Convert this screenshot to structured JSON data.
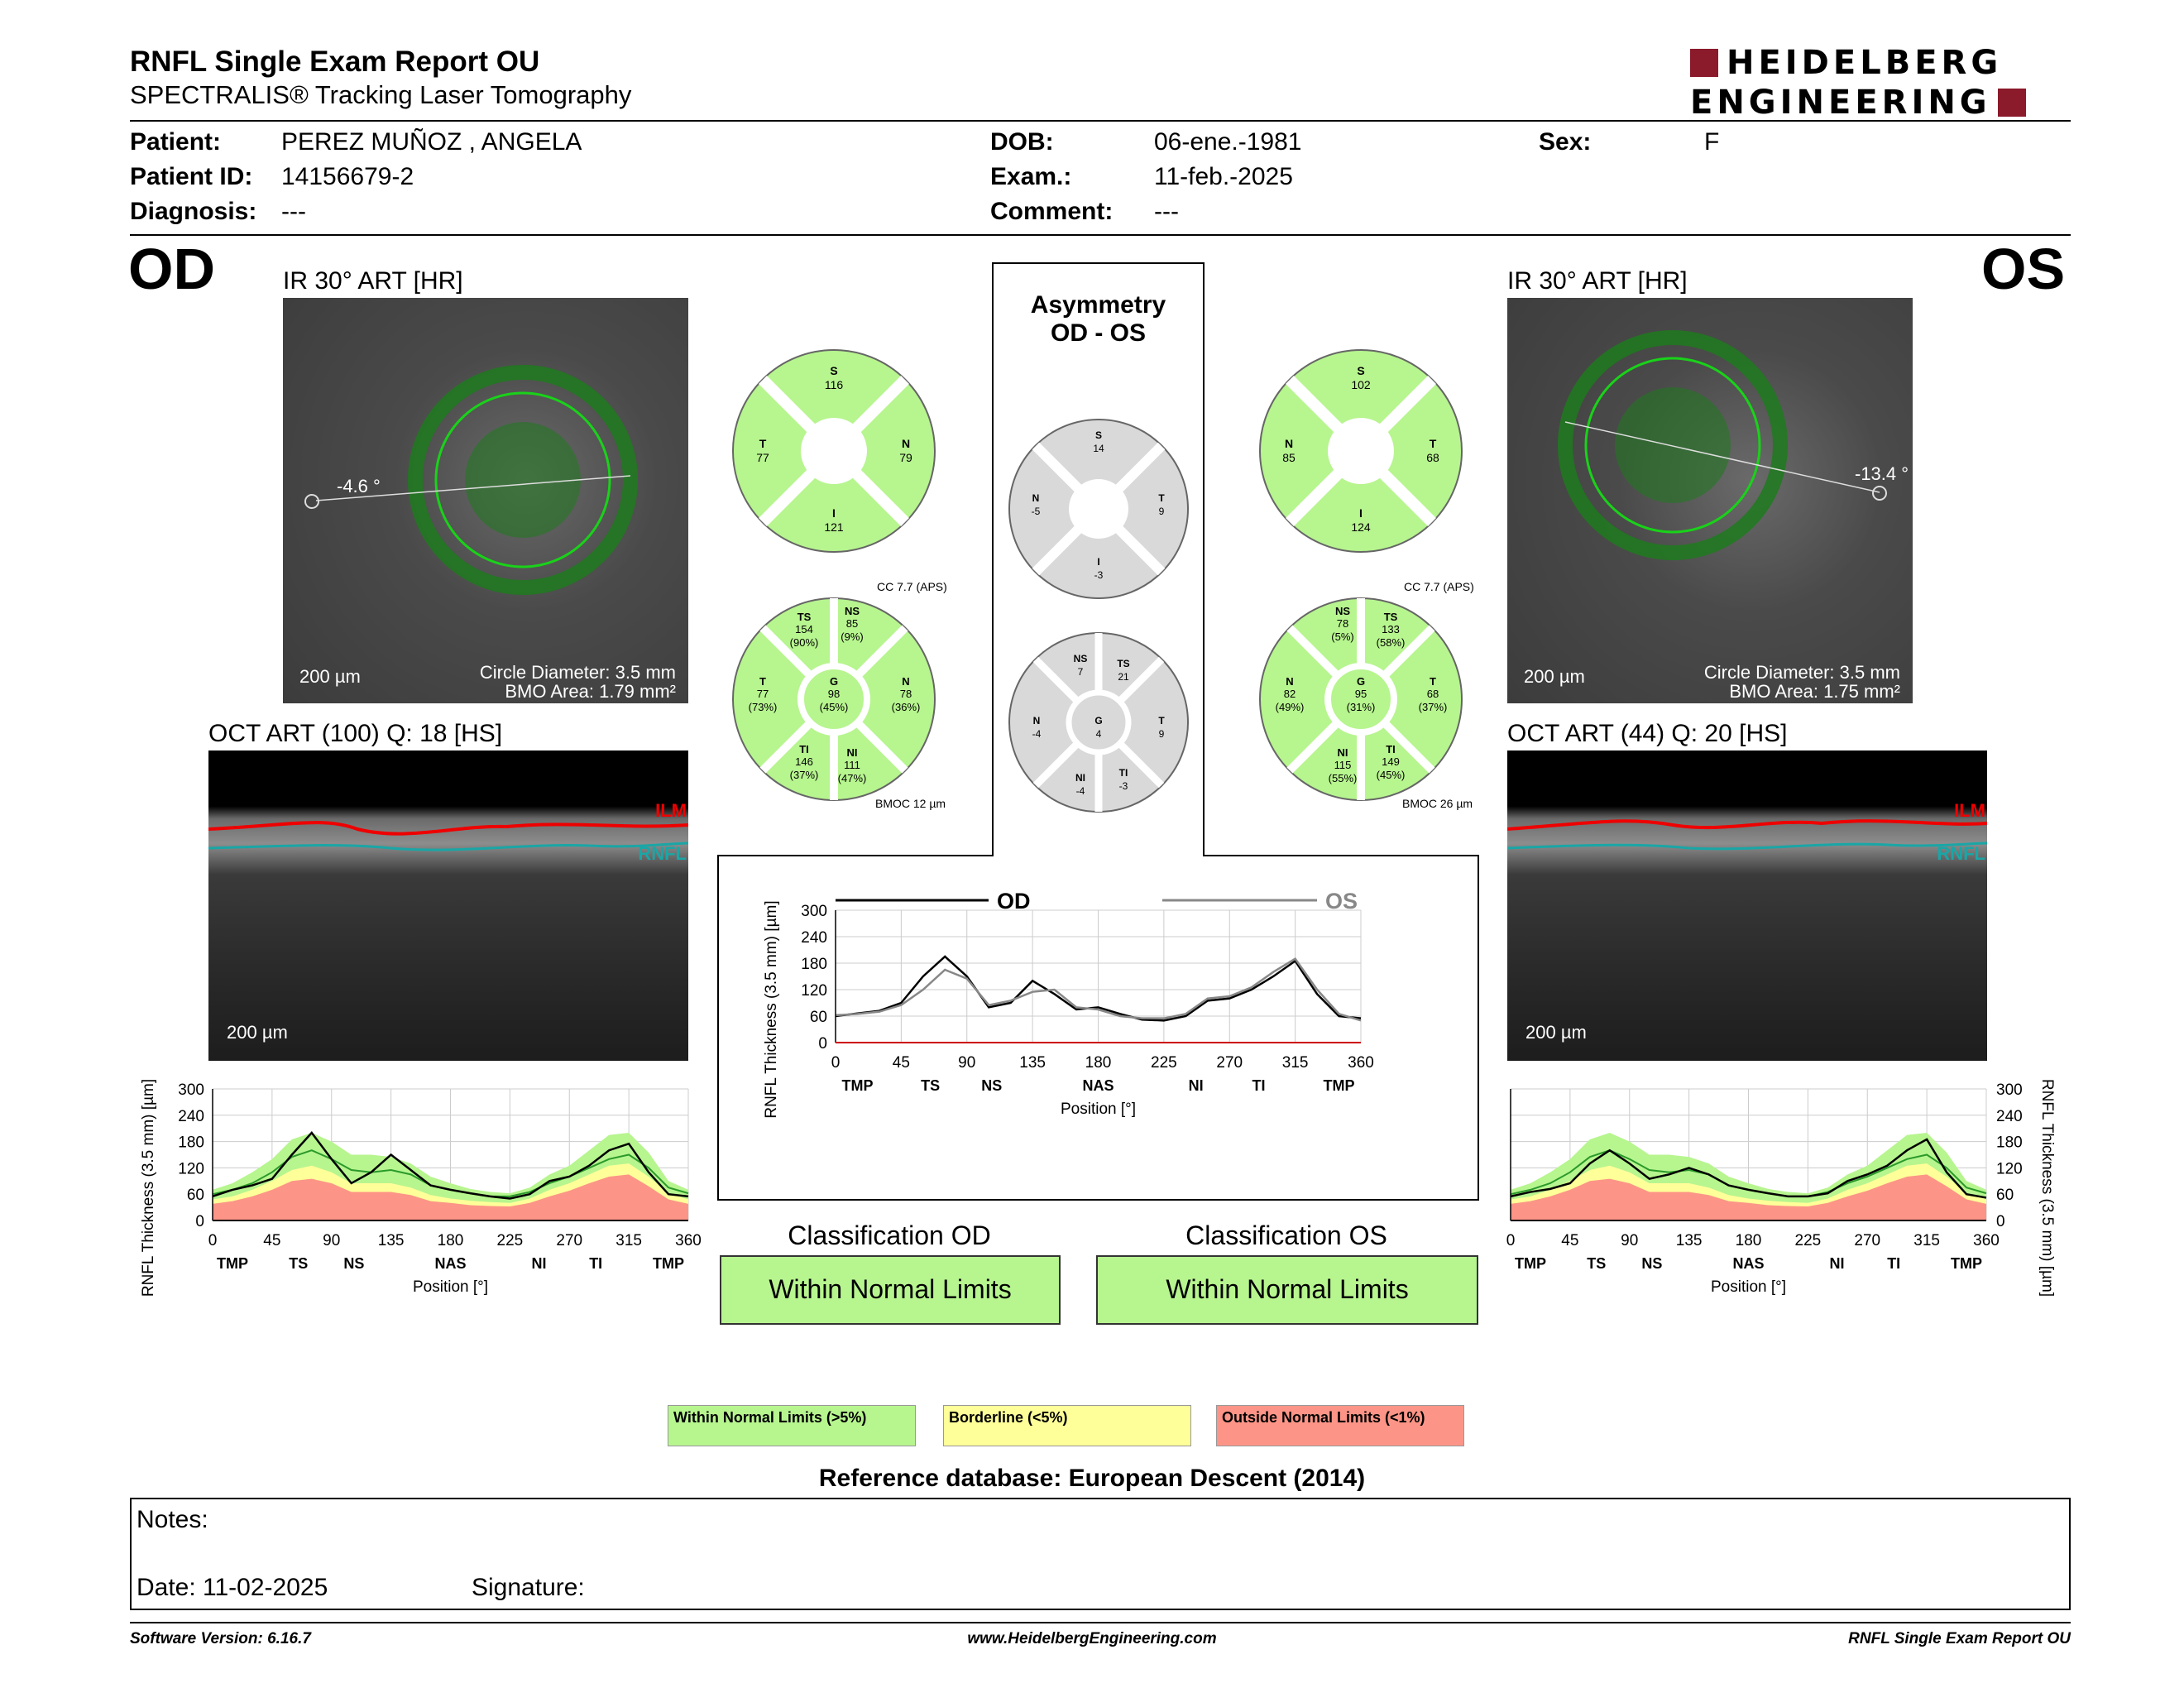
{
  "header": {
    "title": "RNFL Single Exam Report OU",
    "subtitle": "SPECTRALIS® Tracking Laser Tomography",
    "logo_line1": "HEIDELBERG",
    "logo_line2": "ENGINEERING"
  },
  "patient": {
    "patient_label": "Patient:",
    "patient_value": "PEREZ MUÑOZ , ANGELA",
    "id_label": "Patient ID:",
    "id_value": "14156679-2",
    "diag_label": "Diagnosis:",
    "diag_value": "---",
    "dob_label": "DOB:",
    "dob_value": "06-ene.-1981",
    "exam_label": "Exam.:",
    "exam_value": "11-feb.-2025",
    "comment_label": "Comment:",
    "comment_value": "---",
    "sex_label": "Sex:",
    "sex_value": "F"
  },
  "od": {
    "eye": "OD",
    "ir_caption": "IR 30° ART [HR]",
    "angle": "-4.6 °",
    "scale": "200 µm",
    "circle_diameter": "Circle Diameter: 3.5 mm",
    "bmo_area": "BMO Area: 1.79 mm²",
    "oct_caption": "OCT ART (100) Q: 18 [HS]",
    "oct_scale": "200 µm",
    "ilm": "ILM",
    "rnfl": "RNFL",
    "sectors4": {
      "S": "116",
      "T": "77",
      "N": "79",
      "I": "121"
    },
    "cc": "CC 7.7 (APS)",
    "bmoc": "BMOC 12 µm",
    "sectors6": {
      "TS": [
        "154",
        "(90%)"
      ],
      "NS": [
        "85",
        "(9%)"
      ],
      "T": [
        "77",
        "(73%)"
      ],
      "G": [
        "98",
        "(45%)"
      ],
      "N": [
        "78",
        "(36%)"
      ],
      "TI": [
        "146",
        "(37%)"
      ],
      "NI": [
        "111",
        "(47%)"
      ]
    },
    "classification_title": "Classification OD",
    "classification": "Within Normal Limits"
  },
  "os": {
    "eye": "OS",
    "ir_caption": "IR 30° ART [HR]",
    "angle": "-13.4 °",
    "scale": "200 µm",
    "circle_diameter": "Circle Diameter: 3.5 mm",
    "bmo_area": "BMO Area: 1.75 mm²",
    "oct_caption": "OCT ART (44) Q: 20 [HS]",
    "oct_scale": "200 µm",
    "ilm": "ILM",
    "rnfl": "RNFL",
    "sectors4": {
      "S": "102",
      "N": "85",
      "T": "68",
      "I": "124"
    },
    "cc": "CC 7.7 (APS)",
    "bmoc": "BMOC 26 µm",
    "sectors6": {
      "NS": [
        "78",
        "(5%)"
      ],
      "TS": [
        "133",
        "(58%)"
      ],
      "N": [
        "82",
        "(49%)"
      ],
      "G": [
        "95",
        "(31%)"
      ],
      "T": [
        "68",
        "(37%)"
      ],
      "NI": [
        "115",
        "(55%)"
      ],
      "TI": [
        "149",
        "(45%)"
      ]
    },
    "classification_title": "Classification OS",
    "classification": "Within Normal Limits"
  },
  "asymmetry": {
    "title1": "Asymmetry",
    "title2": "OD - OS",
    "sectors4": {
      "S": "14",
      "N": "-5",
      "T": "9",
      "I": "-3"
    },
    "sectors6": {
      "NS": "7",
      "TS": "21",
      "N": "-4",
      "G": "4",
      "T": "9",
      "NI": "-4",
      "TI": "-3"
    }
  },
  "profile_axis": {
    "ylabel": "RNFL Thickness (3.5 mm) [µm]",
    "xlabel": "Position [°]",
    "yticks": [
      "0",
      "60",
      "120",
      "180",
      "240",
      "300"
    ],
    "yticks_center": [
      "0",
      "60",
      "120",
      "180",
      "240",
      "300"
    ],
    "xticks": [
      "0",
      "45",
      "90",
      "135",
      "180",
      "225",
      "270",
      "315",
      "360"
    ],
    "regions": [
      "TMP",
      "TS",
      "NS",
      "NAS",
      "NI",
      "TI",
      "TMP"
    ]
  },
  "center_legend": {
    "od": "OD",
    "os": "OS"
  },
  "legend": {
    "wnl": "Within Normal Limits (>5%)",
    "bl": "Borderline (<5%)",
    "onl": "Outside Normal Limits (<1%)",
    "wnl_color": "#b7f58f",
    "bl_color": "#ffff99",
    "onl_color": "#fc9587"
  },
  "reference": "Reference database: European Descent (2014)",
  "notes": {
    "notes_label": "Notes:",
    "date_label": "Date: 11-02-2025",
    "signature_label": "Signature:"
  },
  "footer": {
    "version": "Software Version: 6.16.7",
    "url": "www.HeidelbergEngineering.com",
    "report": "RNFL Single Exam Report OU"
  },
  "chart_data": [
    {
      "type": "line",
      "title": "",
      "xlabel": "Position [°]",
      "ylabel": "RNFL Thickness (3.5 mm) [µm]",
      "xlim": [
        0,
        360
      ],
      "ylim": [
        0,
        300
      ],
      "x": [
        0,
        15,
        30,
        45,
        60,
        75,
        90,
        105,
        120,
        135,
        150,
        165,
        180,
        195,
        210,
        225,
        240,
        255,
        270,
        285,
        300,
        315,
        330,
        345,
        360
      ],
      "series": [
        {
          "name": "OD",
          "values": [
            60,
            66,
            72,
            90,
            150,
            195,
            150,
            80,
            90,
            140,
            110,
            75,
            80,
            65,
            52,
            50,
            60,
            95,
            100,
            120,
            150,
            185,
            110,
            60,
            55
          ]
        },
        {
          "name": "OS",
          "values": [
            62,
            65,
            70,
            85,
            120,
            165,
            145,
            85,
            95,
            115,
            120,
            80,
            75,
            60,
            55,
            55,
            65,
            100,
            105,
            125,
            160,
            190,
            120,
            65,
            50
          ]
        }
      ],
      "grid": true
    },
    {
      "type": "area",
      "title": "",
      "xlabel": "Position [°]",
      "ylabel": "RNFL Thickness (3.5 mm) [µm]",
      "xlim": [
        0,
        360
      ],
      "ylim": [
        0,
        300
      ],
      "x": [
        0,
        15,
        30,
        45,
        60,
        75,
        90,
        105,
        120,
        135,
        150,
        165,
        180,
        195,
        210,
        225,
        240,
        255,
        270,
        285,
        300,
        315,
        330,
        345,
        360
      ],
      "series": [
        {
          "name": "OD",
          "values": [
            55,
            70,
            80,
            95,
            150,
            200,
            140,
            85,
            110,
            150,
            115,
            80,
            70,
            62,
            55,
            50,
            60,
            90,
            100,
            125,
            160,
            175,
            110,
            60,
            55
          ]
        }
      ],
      "bands": {
        "wnl_upper": [
          70,
          85,
          110,
          140,
          185,
          200,
          180,
          150,
          150,
          145,
          130,
          100,
          85,
          72,
          65,
          62,
          75,
          105,
          125,
          160,
          195,
          200,
          155,
          90,
          70
        ],
        "bl_upper": [
          48,
          55,
          70,
          90,
          115,
          125,
          110,
          85,
          85,
          85,
          75,
          58,
          50,
          45,
          42,
          40,
          50,
          70,
          85,
          105,
          125,
          130,
          100,
          62,
          48
        ],
        "onl_upper": [
          38,
          44,
          55,
          70,
          90,
          95,
          85,
          65,
          65,
          65,
          58,
          44,
          40,
          35,
          33,
          32,
          40,
          55,
          68,
          85,
          100,
          105,
          78,
          48,
          38
        ],
        "mean": [
          60,
          70,
          85,
          110,
          145,
          160,
          140,
          115,
          110,
          115,
          105,
          80,
          70,
          62,
          55,
          55,
          65,
          85,
          100,
          120,
          140,
          150,
          120,
          75,
          62
        ]
      },
      "grid": true
    },
    {
      "type": "area",
      "title": "",
      "xlabel": "Position [°]",
      "ylabel": "RNFL Thickness (3.5 mm) [µm]",
      "xlim": [
        0,
        360
      ],
      "ylim": [
        0,
        300
      ],
      "x": [
        0,
        15,
        30,
        45,
        60,
        75,
        90,
        105,
        120,
        135,
        150,
        165,
        180,
        195,
        210,
        225,
        240,
        255,
        270,
        285,
        300,
        315,
        330,
        345,
        360
      ],
      "series": [
        {
          "name": "OS",
          "values": [
            55,
            65,
            72,
            85,
            130,
            160,
            130,
            95,
            105,
            120,
            105,
            80,
            70,
            62,
            55,
            55,
            62,
            90,
            105,
            125,
            160,
            185,
            110,
            60,
            52
          ]
        }
      ],
      "bands": {
        "wnl_upper": [
          70,
          85,
          110,
          140,
          185,
          200,
          180,
          150,
          150,
          145,
          130,
          100,
          85,
          72,
          65,
          62,
          75,
          105,
          125,
          160,
          195,
          200,
          155,
          90,
          70
        ],
        "bl_upper": [
          48,
          55,
          70,
          90,
          115,
          125,
          110,
          85,
          85,
          85,
          75,
          58,
          50,
          45,
          42,
          40,
          50,
          70,
          85,
          105,
          125,
          130,
          100,
          62,
          48
        ],
        "onl_upper": [
          38,
          44,
          55,
          70,
          90,
          95,
          85,
          65,
          65,
          65,
          58,
          44,
          40,
          35,
          33,
          32,
          40,
          55,
          68,
          85,
          100,
          105,
          78,
          48,
          38
        ],
        "mean": [
          60,
          70,
          85,
          110,
          145,
          160,
          140,
          115,
          110,
          115,
          105,
          80,
          70,
          62,
          55,
          55,
          65,
          85,
          100,
          120,
          140,
          150,
          120,
          75,
          62
        ]
      },
      "grid": true
    }
  ]
}
